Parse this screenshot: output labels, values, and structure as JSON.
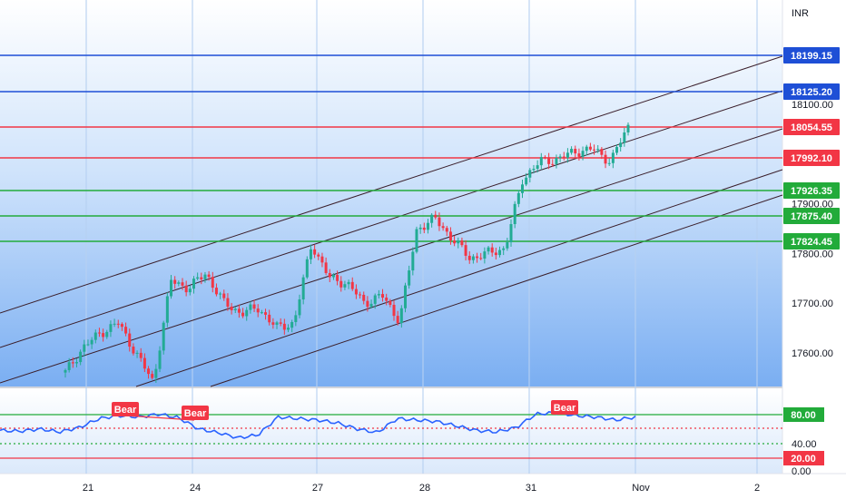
{
  "currency": "INR",
  "colors": {
    "bg_gradient_top": "#ffffff",
    "bg_gradient_bottom": "#6fa8f0",
    "blue_line": "#1e4fd6",
    "red_line": "#f23645",
    "green_line": "#22ab3a",
    "channel_line": "#3b1f2b",
    "candle_up": "#22ab94",
    "candle_down": "#f23645",
    "rsi_line": "#2962ff",
    "bear_label": "#f23645"
  },
  "chart_data": [
    {
      "type": "candlestick",
      "title": "",
      "currency": "INR",
      "y_ticks": [
        "18100.00",
        "17900.00",
        "17800.00",
        "17700.00",
        "17600.00"
      ],
      "ylim": [
        17530,
        18275
      ],
      "x_ticks": [
        "21",
        "24",
        "27",
        "28",
        "31",
        "Nov",
        "2"
      ],
      "horizontal_levels": [
        {
          "value": 18199.15,
          "label": "18199.15",
          "color": "#1e4fd6"
        },
        {
          "value": 18125.2,
          "label": "18125.20",
          "color": "#1e4fd6"
        },
        {
          "value": 18054.55,
          "label": "18054.55",
          "color": "#f23645"
        },
        {
          "value": 17992.1,
          "label": "17992.10",
          "color": "#f23645"
        },
        {
          "value": 17926.35,
          "label": "17926.35",
          "color": "#22ab3a"
        },
        {
          "value": 17875.4,
          "label": "17875.40",
          "color": "#22ab3a"
        },
        {
          "value": 17824.45,
          "label": "17824.45",
          "color": "#22ab3a"
        }
      ],
      "approx_close_path": [
        17560,
        17610,
        17640,
        17660,
        17600,
        17540,
        17745,
        17730,
        17760,
        17700,
        17680,
        17690,
        17650,
        17660,
        17820,
        17750,
        17740,
        17700,
        17715,
        17665,
        17850,
        17870,
        17830,
        17790,
        17800,
        17810,
        17950,
        17985,
        17990,
        18005,
        18010,
        17985,
        18055
      ]
    },
    {
      "type": "line",
      "title": "",
      "y_ticks": [
        "80.00",
        "40.00",
        "20.00",
        "0.00"
      ],
      "ylim": [
        0,
        100
      ],
      "levels": [
        {
          "value": 80,
          "label": "80.00"
        },
        {
          "value": 20,
          "label": "20.00"
        }
      ],
      "labels": [
        "Bear",
        "Bear",
        "Bear"
      ],
      "approx_values": [
        58,
        57,
        60,
        56,
        62,
        74,
        78,
        76,
        80,
        75,
        60,
        55,
        48,
        52,
        76,
        74,
        72,
        68,
        60,
        55,
        74,
        72,
        70,
        64,
        58,
        56,
        62,
        80,
        82,
        78,
        76,
        72,
        76
      ]
    }
  ]
}
